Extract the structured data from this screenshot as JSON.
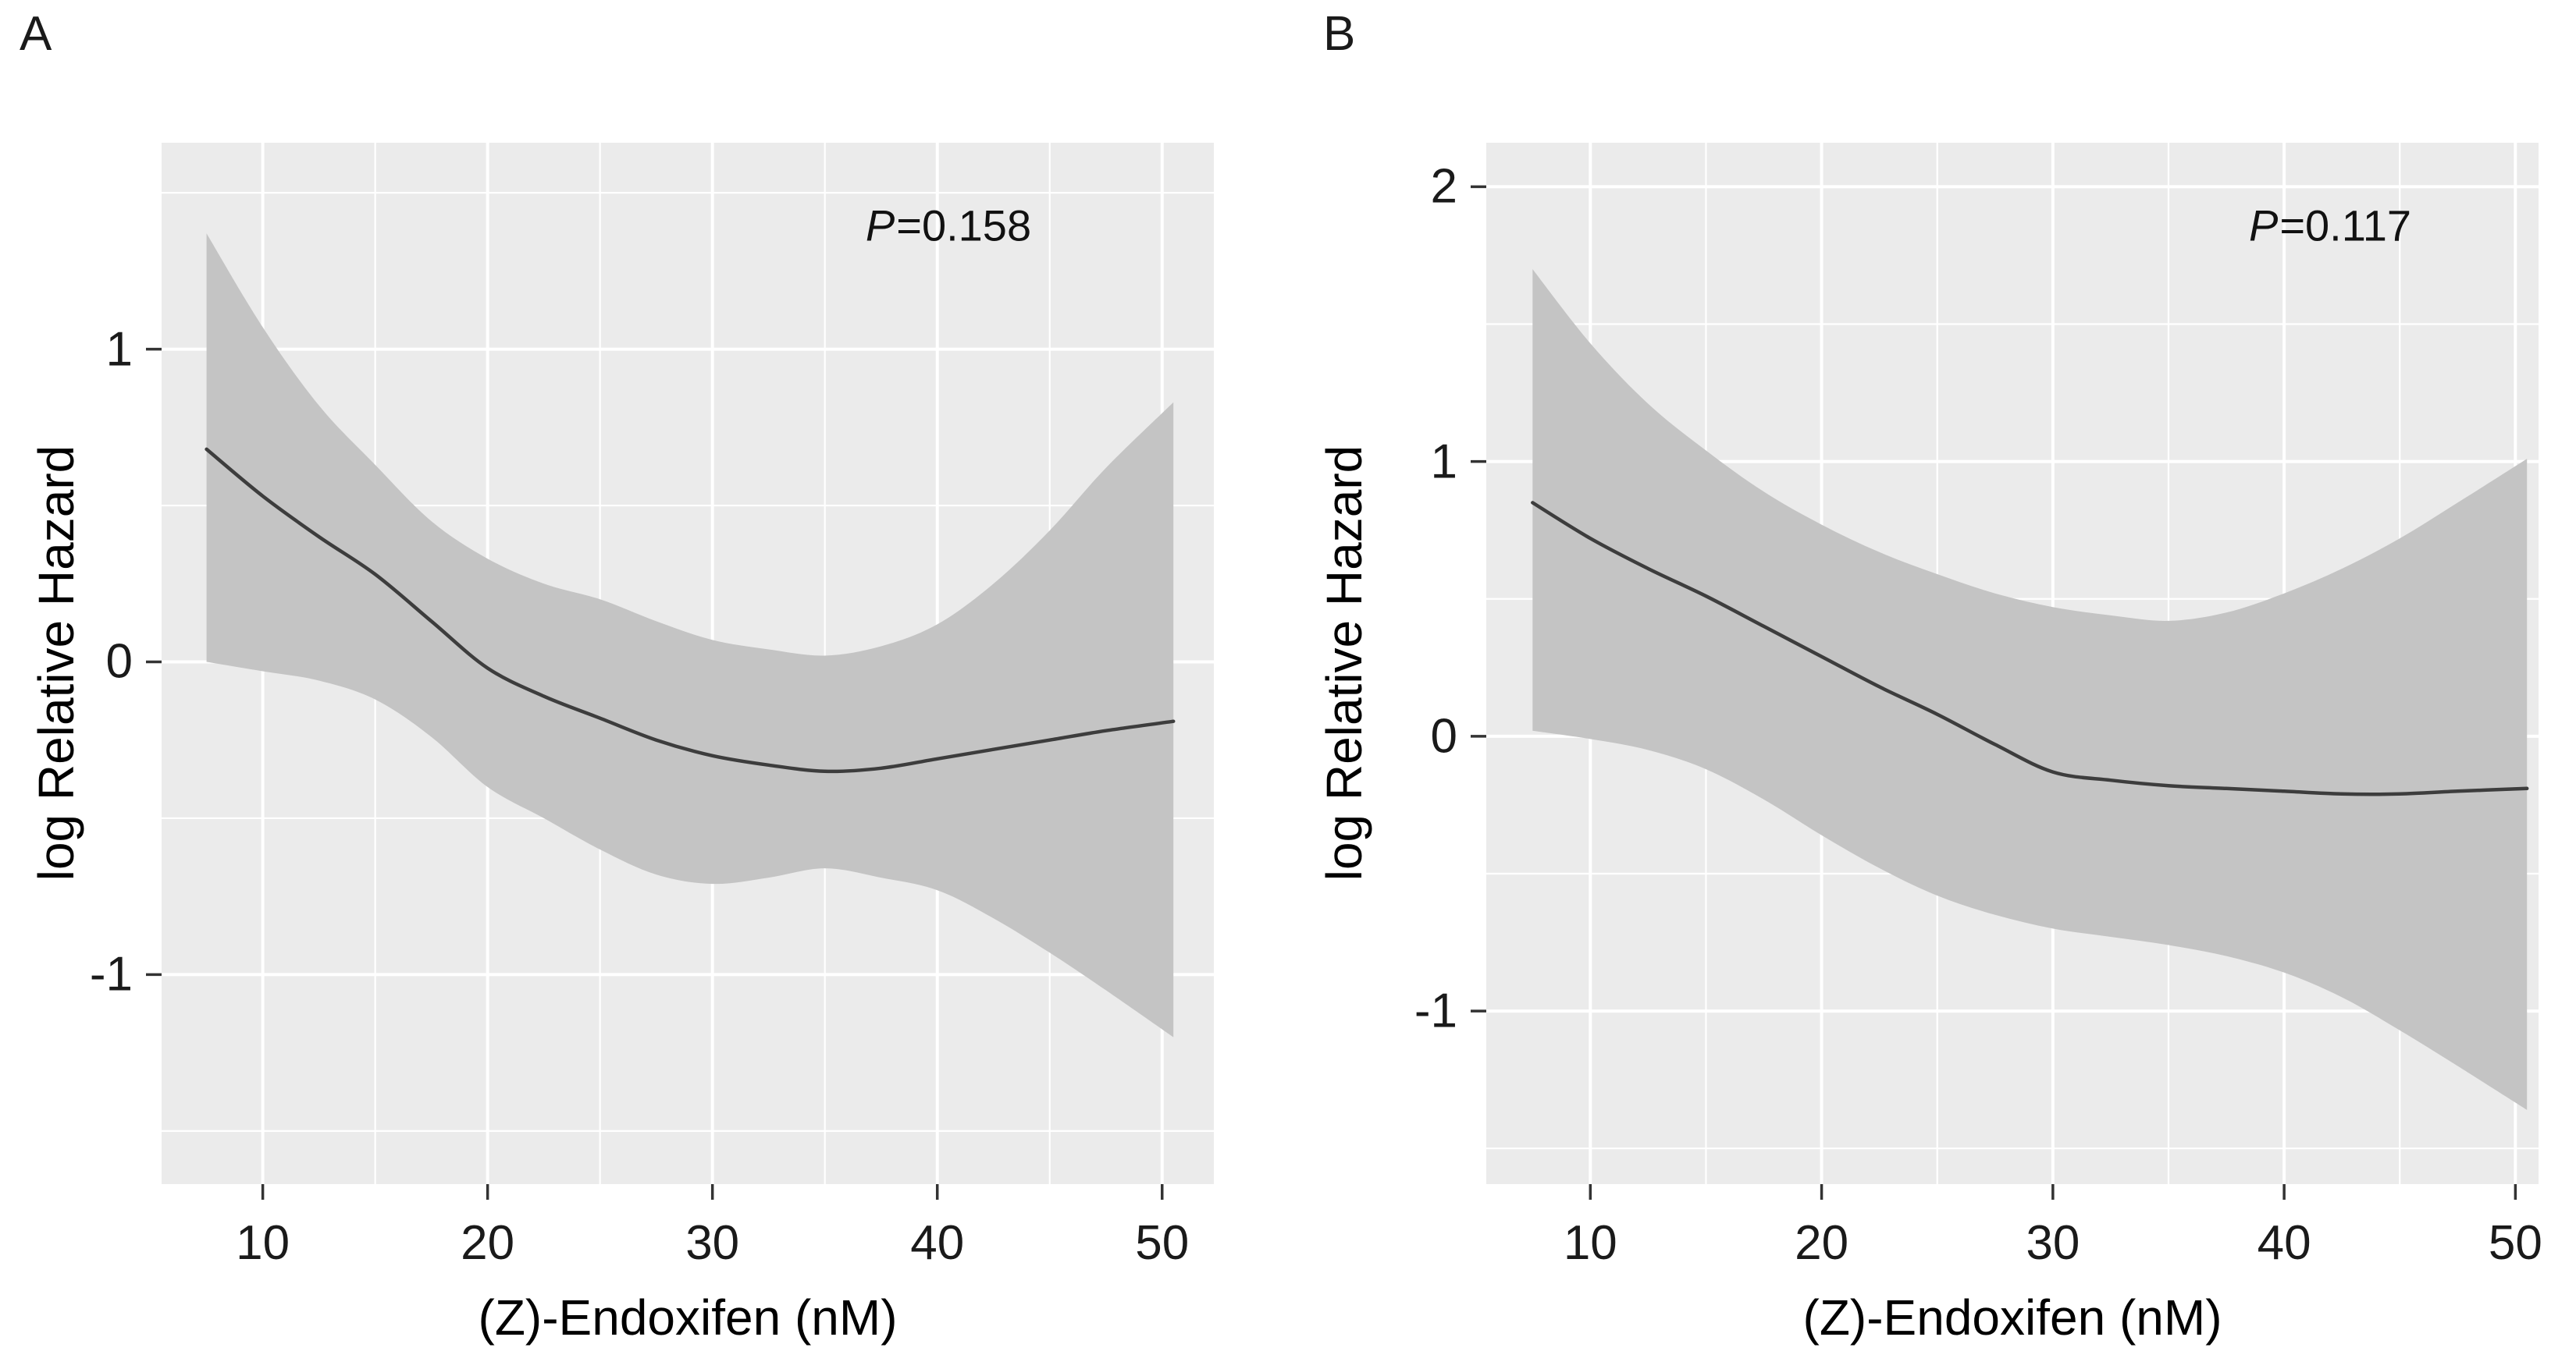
{
  "figure": {
    "panel_count": 2,
    "colors": {
      "page_bg": "#ffffff",
      "plot_bg": "#ebebeb",
      "grid_major": "#ffffff",
      "grid_minor": "#ffffff",
      "ci_band": "#c4c4c4",
      "fit_line": "#3d3d3d",
      "tick_mark": "#333333",
      "text": "#000000"
    }
  },
  "chart_data": [
    {
      "type": "line",
      "panel_label": "A",
      "title": "",
      "xlabel": "(Z)-Endoxifen (nM)",
      "ylabel": "log Relative Hazard",
      "annotation": {
        "italic": "P",
        "text": "=0.158"
      },
      "legend": false,
      "grid": true,
      "xlim": [
        5.5,
        52.3
      ],
      "ylim": [
        -1.67,
        1.66
      ],
      "x_ticks": [
        10,
        20,
        30,
        40,
        50
      ],
      "x_minor_ticks": [
        15,
        25,
        35,
        45
      ],
      "y_ticks": [
        1,
        0,
        -1
      ],
      "y_minor_ticks": [
        1.5,
        0.5,
        -0.5,
        -1.5
      ],
      "x": [
        7.5,
        10,
        12.5,
        15,
        17.5,
        20,
        22.5,
        25,
        27.5,
        30,
        32.5,
        35,
        37.5,
        40,
        42.5,
        45,
        47.5,
        50.5
      ],
      "series": [
        {
          "name": "fit",
          "values": [
            0.68,
            0.53,
            0.4,
            0.28,
            0.13,
            -0.02,
            -0.11,
            -0.18,
            -0.25,
            -0.3,
            -0.33,
            -0.35,
            -0.34,
            -0.31,
            -0.28,
            -0.25,
            -0.22,
            -0.19
          ]
        },
        {
          "name": "ci_upper",
          "values": [
            1.37,
            1.07,
            0.82,
            0.63,
            0.45,
            0.33,
            0.25,
            0.2,
            0.13,
            0.07,
            0.04,
            0.02,
            0.05,
            0.12,
            0.25,
            0.42,
            0.62,
            0.83
          ]
        },
        {
          "name": "ci_lower",
          "values": [
            0.0,
            -0.03,
            -0.06,
            -0.12,
            -0.24,
            -0.4,
            -0.5,
            -0.6,
            -0.68,
            -0.71,
            -0.69,
            -0.66,
            -0.69,
            -0.73,
            -0.82,
            -0.93,
            -1.05,
            -1.2
          ]
        }
      ]
    },
    {
      "type": "line",
      "panel_label": "B",
      "title": "",
      "xlabel": "(Z)-Endoxifen (nM)",
      "ylabel": "log Relative Hazard",
      "annotation": {
        "italic": "P",
        "text": "=0.117"
      },
      "legend": false,
      "grid": true,
      "xlim": [
        5.5,
        51.0
      ],
      "ylim": [
        -1.63,
        2.16
      ],
      "x_ticks": [
        10,
        20,
        30,
        40,
        50
      ],
      "x_minor_ticks": [
        15,
        25,
        35,
        45
      ],
      "y_ticks": [
        2,
        1,
        0,
        -1
      ],
      "y_minor_ticks": [
        1.5,
        0.5,
        -0.5,
        -1.5
      ],
      "x": [
        7.5,
        10,
        12.5,
        15,
        17.5,
        20,
        22.5,
        25,
        27.5,
        30,
        32.5,
        35,
        37.5,
        40,
        42.5,
        45,
        47.5,
        50.5
      ],
      "series": [
        {
          "name": "fit",
          "values": [
            0.85,
            0.72,
            0.61,
            0.51,
            0.4,
            0.29,
            0.18,
            0.08,
            -0.03,
            -0.13,
            -0.16,
            -0.18,
            -0.19,
            -0.2,
            -0.21,
            -0.21,
            -0.2,
            -0.19
          ]
        },
        {
          "name": "ci_upper",
          "values": [
            1.7,
            1.43,
            1.21,
            1.04,
            0.89,
            0.77,
            0.67,
            0.59,
            0.52,
            0.47,
            0.44,
            0.42,
            0.45,
            0.52,
            0.61,
            0.72,
            0.85,
            1.01
          ]
        },
        {
          "name": "ci_lower",
          "values": [
            0.02,
            -0.01,
            -0.05,
            -0.12,
            -0.23,
            -0.36,
            -0.48,
            -0.58,
            -0.65,
            -0.7,
            -0.73,
            -0.76,
            -0.8,
            -0.86,
            -0.95,
            -1.07,
            -1.2,
            -1.36
          ]
        }
      ]
    }
  ]
}
